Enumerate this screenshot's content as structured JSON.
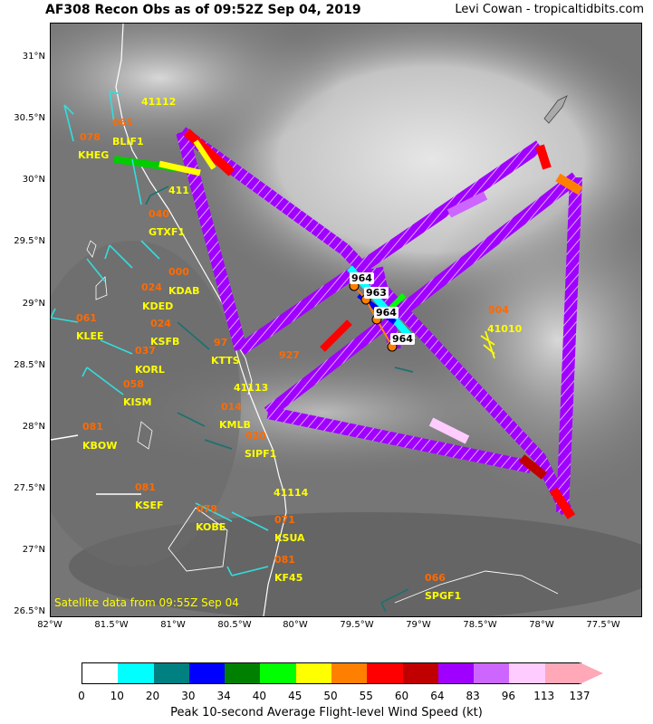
{
  "header": {
    "title": "AF308 Recon Obs as of 09:52Z Sep 04, 2019",
    "credit": "Levi Cowan - tropicaltidbits.com"
  },
  "map": {
    "lat_labels": [
      "31°N",
      "30.5°N",
      "30°N",
      "29.5°N",
      "29°N",
      "28.5°N",
      "28°N",
      "27.5°N",
      "27°N",
      "26.5°N"
    ],
    "lon_labels": [
      "82°W",
      "81.5°W",
      "81°W",
      "80.5°W",
      "80°W",
      "79.5°W",
      "79°W",
      "78.5°W",
      "78°W",
      "77.5°W"
    ],
    "satellite_note": "Satellite data from 09:55Z Sep 04",
    "stations": [
      {
        "id": "41112",
        "cls": "yellow"
      },
      {
        "id": "065",
        "cls": "orange"
      },
      {
        "id": "BLIF1",
        "cls": "yellow"
      },
      {
        "id": "078",
        "cls": "orange"
      },
      {
        "id": "KHEG",
        "cls": "yellow"
      },
      {
        "id": "411",
        "cls": "yellow"
      },
      {
        "id": "040",
        "cls": "orange"
      },
      {
        "id": "GTXF1",
        "cls": "yellow"
      },
      {
        "id": "000",
        "cls": "orange"
      },
      {
        "id": "KDAB",
        "cls": "yellow"
      },
      {
        "id": "024",
        "cls": "orange"
      },
      {
        "id": "KDED",
        "cls": "yellow"
      },
      {
        "id": "061",
        "cls": "orange"
      },
      {
        "id": "KLEE",
        "cls": "yellow"
      },
      {
        "id": "024",
        "cls": "orange"
      },
      {
        "id": "KSFB",
        "cls": "yellow"
      },
      {
        "id": "037",
        "cls": "orange"
      },
      {
        "id": "KORL",
        "cls": "yellow"
      },
      {
        "id": "97",
        "cls": "orange"
      },
      {
        "id": "KTTS",
        "cls": "yellow"
      },
      {
        "id": "927",
        "cls": "orange"
      },
      {
        "id": "058",
        "cls": "orange"
      },
      {
        "id": "KISM",
        "cls": "yellow"
      },
      {
        "id": "41113",
        "cls": "yellow"
      },
      {
        "id": "014",
        "cls": "orange"
      },
      {
        "id": "KMLB",
        "cls": "yellow"
      },
      {
        "id": "081",
        "cls": "orange"
      },
      {
        "id": "KBOW",
        "cls": "yellow"
      },
      {
        "id": "020",
        "cls": "orange"
      },
      {
        "id": "SIPF1",
        "cls": "yellow"
      },
      {
        "id": "41114",
        "cls": "yellow"
      },
      {
        "id": "081",
        "cls": "orange"
      },
      {
        "id": "KSEF",
        "cls": "yellow"
      },
      {
        "id": "078",
        "cls": "orange"
      },
      {
        "id": "KOBE",
        "cls": "yellow"
      },
      {
        "id": "071",
        "cls": "orange"
      },
      {
        "id": "KSUA",
        "cls": "yellow"
      },
      {
        "id": "081",
        "cls": "orange"
      },
      {
        "id": "KF45",
        "cls": "yellow"
      },
      {
        "id": "904",
        "cls": "orange"
      },
      {
        "id": "41010",
        "cls": "yellow"
      },
      {
        "id": "066",
        "cls": "orange"
      },
      {
        "id": "SPGF1",
        "cls": "yellow"
      }
    ],
    "pressure_points": [
      {
        "label": "964"
      },
      {
        "label": "963"
      },
      {
        "label": "964"
      },
      {
        "label": "964"
      }
    ]
  },
  "colorbar": {
    "colors": [
      "#ffffff",
      "#00ffff",
      "#008080",
      "#0000ff",
      "#008000",
      "#00ff00",
      "#ffff00",
      "#ff8000",
      "#ff0000",
      "#c00000",
      "#a000ff",
      "#cc66ff",
      "#ffccff",
      "#ffa8b8"
    ],
    "ticks": [
      "0",
      "10",
      "20",
      "30",
      "34",
      "40",
      "45",
      "50",
      "55",
      "60",
      "64",
      "83",
      "96",
      "113",
      "137"
    ],
    "label": "Peak 10-second Average Flight-level Wind Speed (kt)"
  }
}
